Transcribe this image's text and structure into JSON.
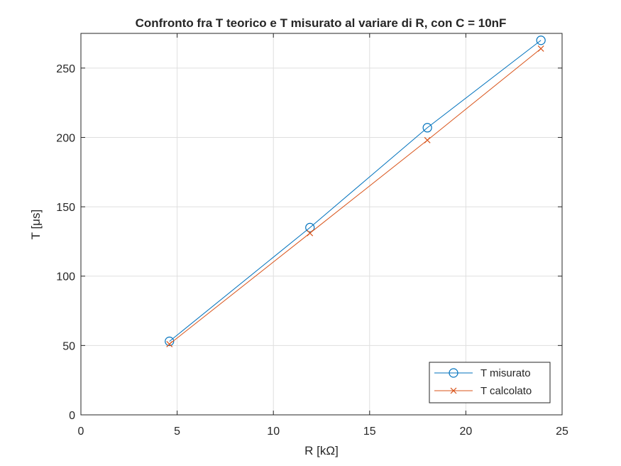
{
  "chart_data": {
    "type": "line",
    "title": "Confronto fra T teorico e T misurato al variare di R, con C = 10nF",
    "xlabel": "R [kΩ]",
    "ylabel": "T [μs]",
    "xlim": [
      0,
      25
    ],
    "ylim": [
      0,
      275
    ],
    "xticks": [
      0,
      5,
      10,
      15,
      20,
      25
    ],
    "yticks": [
      0,
      50,
      100,
      150,
      200,
      250
    ],
    "xtick_labels": [
      "0",
      "5",
      "10",
      "15",
      "20",
      "25"
    ],
    "ytick_labels": [
      "0",
      "50",
      "100",
      "150",
      "200",
      "250"
    ],
    "grid": true,
    "legend_position": "bottom-right",
    "series": [
      {
        "name": "T misurato",
        "color": "#0072BD",
        "marker": "circle",
        "x": [
          4.6,
          11.9,
          18.0,
          23.9
        ],
        "y": [
          53,
          135,
          207,
          270
        ]
      },
      {
        "name": "T calcolato",
        "color": "#D95319",
        "marker": "cross",
        "x": [
          4.6,
          11.9,
          18.0,
          23.9
        ],
        "y": [
          51,
          131,
          198,
          264
        ]
      }
    ]
  }
}
